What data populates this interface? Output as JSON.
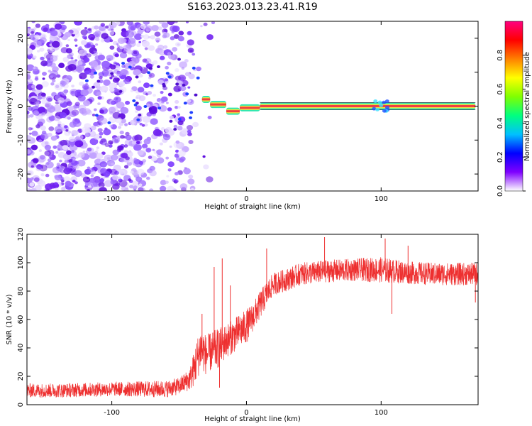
{
  "title": "S163.2023.013.23.41.R19",
  "colors": {
    "snr_line": "#ee3030",
    "axis": "#000000",
    "signal_band": "#f04040"
  },
  "chart_data": [
    {
      "type": "heatmap",
      "name": "spectrogram",
      "xlabel": "Height of straight line (km)",
      "ylabel": "Frequency (Hz)",
      "xlim": [
        -163,
        172
      ],
      "ylim": [
        -25,
        25
      ],
      "x_ticks": [
        -100,
        0,
        100
      ],
      "x_tick_labels": [
        "-100",
        "0",
        "100"
      ],
      "y_ticks": [
        -20,
        -10,
        0,
        10,
        20
      ],
      "y_tick_labels": [
        "-20",
        "-10",
        "0",
        "10",
        "20"
      ],
      "grid": false,
      "carrier_segments": [
        {
          "x_start": -33,
          "x_end": -27,
          "freq": 2.0
        },
        {
          "x_start": -27,
          "x_end": -15,
          "freq": 0.5
        },
        {
          "x_start": -15,
          "x_end": -5,
          "freq": -1.5
        },
        {
          "x_start": -5,
          "x_end": 10,
          "freq": -0.5
        },
        {
          "x_start": 10,
          "x_end": 170,
          "freq": 0.0
        }
      ],
      "noise_region": {
        "x_start": -163,
        "x_end": -35
      },
      "colorbar": {
        "label": "Normalized spectral amplitude",
        "range": [
          0.0,
          1.0
        ],
        "ticks": [
          0.0,
          0.2,
          0.4,
          0.6,
          0.8
        ],
        "tick_labels": [
          "0.0",
          "0.2",
          "0.4",
          "0.6",
          "0.8"
        ],
        "colormap": [
          "#ffffff",
          "#8000ff",
          "#0000ff",
          "#00c0ff",
          "#00ff80",
          "#80ff00",
          "#ffff00",
          "#ff8000",
          "#ff0000",
          "#ff0080"
        ]
      }
    },
    {
      "type": "line",
      "name": "snr",
      "xlabel": "Height of straight line (km)",
      "ylabel": "SNR (10 * v/v)",
      "xlim": [
        -163,
        172
      ],
      "ylim": [
        0,
        120
      ],
      "x_ticks": [
        -100,
        0,
        100
      ],
      "x_tick_labels": [
        "-100",
        "0",
        "100"
      ],
      "y_ticks": [
        0,
        20,
        40,
        60,
        80,
        100,
        120
      ],
      "y_tick_labels": [
        "0",
        "20",
        "40",
        "60",
        "80",
        "100",
        "120"
      ],
      "grid": false,
      "envelope": {
        "x": [
          -163,
          -140,
          -100,
          -60,
          -50,
          -42,
          -38,
          -34,
          -30,
          -25,
          -20,
          -15,
          -10,
          -5,
          0,
          5,
          10,
          15,
          20,
          30,
          40,
          60,
          80,
          100,
          120,
          140,
          172
        ],
        "mean": [
          10,
          10,
          11,
          11,
          13,
          18,
          28,
          40,
          35,
          38,
          40,
          45,
          48,
          52,
          55,
          62,
          70,
          78,
          85,
          88,
          92,
          94,
          95,
          95,
          93,
          92,
          92
        ],
        "spread": [
          5,
          5,
          5,
          6,
          6,
          8,
          14,
          16,
          14,
          14,
          14,
          12,
          12,
          12,
          12,
          10,
          10,
          9,
          8,
          8,
          8,
          8,
          8,
          9,
          8,
          8,
          8
        ]
      },
      "spikes": [
        {
          "x": -33,
          "y": 64
        },
        {
          "x": -24,
          "y": 97
        },
        {
          "x": -18,
          "y": 103
        },
        {
          "x": -20,
          "y": 12
        },
        {
          "x": -12,
          "y": 84
        },
        {
          "x": 15,
          "y": 110
        },
        {
          "x": 58,
          "y": 118
        },
        {
          "x": 103,
          "y": 117
        },
        {
          "x": 108,
          "y": 64
        },
        {
          "x": 120,
          "y": 112
        },
        {
          "x": 170,
          "y": 72
        }
      ]
    }
  ]
}
